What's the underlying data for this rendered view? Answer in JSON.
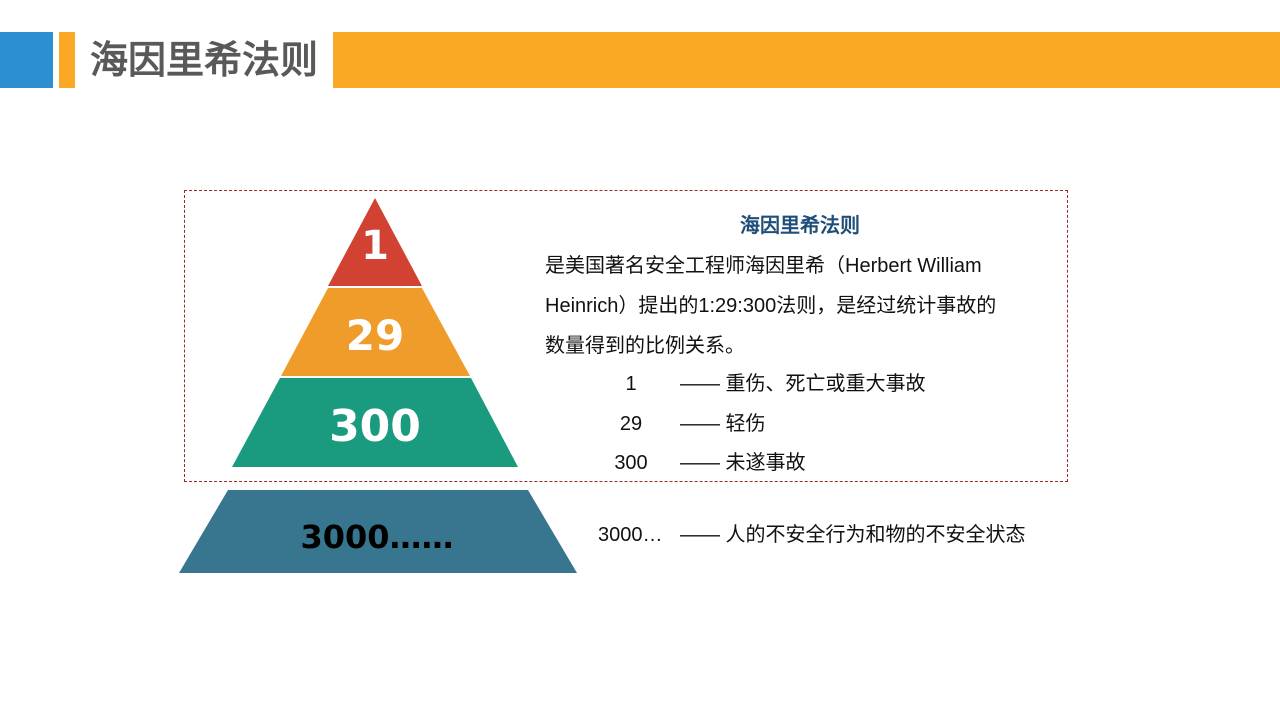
{
  "header": {
    "title": "海因里希法则",
    "colors": {
      "blue": "#2b8fd1",
      "orange": "#f9a923"
    }
  },
  "description": {
    "subtitle": "海因里希法则",
    "lines": [
      "是美国著名安全工程师海因里希（Herbert William",
      "Heinrich）提出的1:29:300法则，是经过统计事故的",
      "数量得到的比例关系。"
    ]
  },
  "legend": [
    {
      "num": "1",
      "text": "—— 重伤、死亡或重大事故"
    },
    {
      "num": "29",
      "text": "—— 轻伤"
    },
    {
      "num": "300",
      "text": "—— 未遂事故"
    },
    {
      "num": "3000…",
      "text": "—— 人的不安全行为和物的不安全状态"
    }
  ],
  "pyramid": [
    {
      "label": "1",
      "color": "#d14232"
    },
    {
      "label": "29",
      "color": "#ef9c2b"
    },
    {
      "label": "300",
      "color": "#1a9a7e"
    },
    {
      "label": "3000……",
      "color": "#37768e"
    }
  ]
}
